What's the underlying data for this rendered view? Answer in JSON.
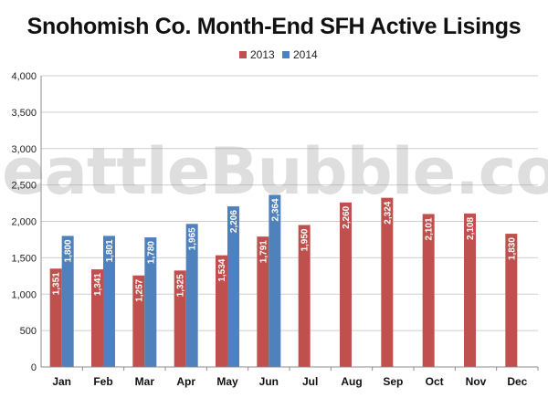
{
  "watermark": "SeattleBubble.com",
  "chart_data": {
    "type": "bar",
    "title": "Snohomish Co. Month-End SFH Active Lisings",
    "xlabel": "",
    "ylabel": "",
    "ylim": [
      0,
      4000
    ],
    "yticks": [
      "0",
      "500",
      "1,000",
      "1,500",
      "2,000",
      "2,500",
      "3,000",
      "3,500",
      "4,000"
    ],
    "grid": true,
    "legend_position": "top",
    "categories": [
      "Jan",
      "Feb",
      "Mar",
      "Apr",
      "May",
      "Jun",
      "Jul",
      "Aug",
      "Sep",
      "Oct",
      "Nov",
      "Dec"
    ],
    "series": [
      {
        "name": "2013",
        "color": "#c0504d",
        "values": [
          1351,
          1341,
          1257,
          1325,
          1534,
          1791,
          1950,
          2260,
          2324,
          2101,
          2108,
          1830
        ],
        "labels": [
          "1,351",
          "1,341",
          "1,257",
          "1,325",
          "1,534",
          "1,791",
          "1,950",
          "2,260",
          "2,324",
          "2,101",
          "2,108",
          "1,830"
        ]
      },
      {
        "name": "2014",
        "color": "#4f81bd",
        "values": [
          1800,
          1801,
          1780,
          1965,
          2206,
          2364,
          null,
          null,
          null,
          null,
          null,
          null
        ],
        "labels": [
          "1,800",
          "1,801",
          "1,780",
          "1,965",
          "2,206",
          "2,364",
          "",
          "",
          "",
          "",
          "",
          ""
        ]
      }
    ]
  }
}
